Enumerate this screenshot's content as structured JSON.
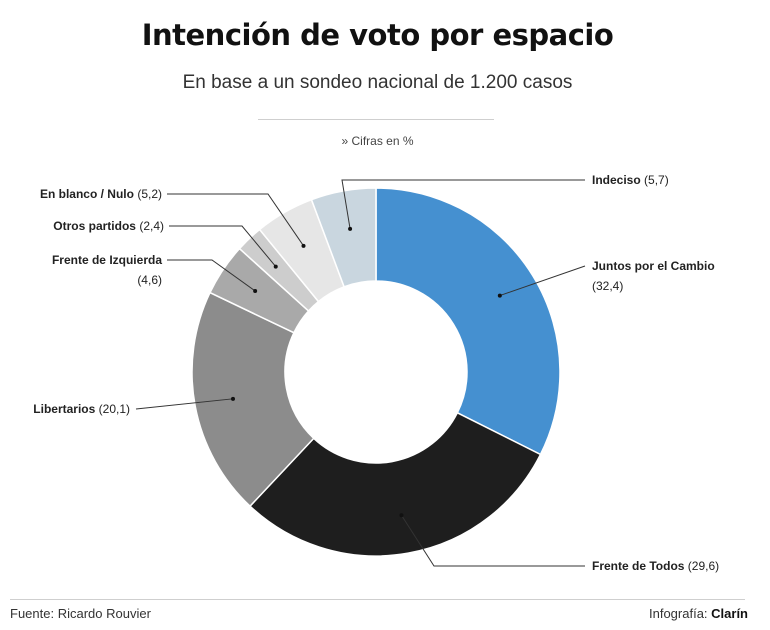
{
  "header": {
    "title": "Intención de voto por espacio",
    "subtitle": "En base a un sondeo nacional de 1.200 casos",
    "note": "» Cifras en %"
  },
  "footer": {
    "source": "Fuente: Ricardo Rouvier",
    "credit_prefix": "Infografía: ",
    "credit_brand": "Clarín"
  },
  "chart_data": {
    "type": "pie",
    "donut": true,
    "unit": "%",
    "slices": [
      {
        "name": "Juntos por el Cambio",
        "value": 32.4,
        "value_label": "(32,4)",
        "color": "#4590d0"
      },
      {
        "name": "Frente de Todos",
        "value": 29.6,
        "value_label": "(29,6)",
        "color": "#1e1e1e"
      },
      {
        "name": "Libertarios",
        "value": 20.1,
        "value_label": "(20,1)",
        "color": "#8c8c8c"
      },
      {
        "name": "Frente de Izquierda",
        "value": 4.6,
        "value_label": "(4,6)",
        "color": "#a9a9a9"
      },
      {
        "name": "Otros partidos",
        "value": 2.4,
        "value_label": "(2,4)",
        "color": "#cdcdcd"
      },
      {
        "name": "En blanco / Nulo",
        "value": 5.2,
        "value_label": "(5,2)",
        "color": "#e6e6e6"
      },
      {
        "name": "Indeciso",
        "value": 5.7,
        "value_label": "(5,7)",
        "color": "#c9d6df"
      }
    ]
  }
}
